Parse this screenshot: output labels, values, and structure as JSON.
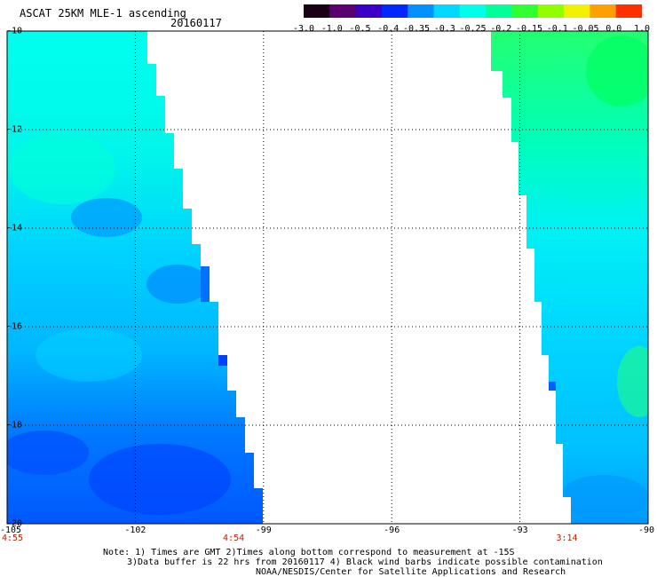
{
  "header": {
    "title": "ASCAT 25KM MLE-1 ascending",
    "date": "20160117"
  },
  "colorbar": {
    "labels": [
      "-3.0",
      "-1.0",
      "-0.5",
      "-0.4",
      "-0.35",
      "-0.3",
      "-0.25",
      "-0.2",
      "-0.15",
      "-0.1",
      "-0.05",
      "0.0",
      "1.0"
    ],
    "colors": [
      "#1a0016",
      "#5a0070",
      "#3a00c8",
      "#0028ff",
      "#0090ff",
      "#00d8ff",
      "#00ffe8",
      "#00ff98",
      "#30ff30",
      "#90ff00",
      "#f0f000",
      "#ffa000",
      "#ff3000"
    ]
  },
  "map": {
    "lat_labels": [
      "-10",
      "-12",
      "-14",
      "-16",
      "-18",
      "-20"
    ],
    "lon_labels": [
      "-105",
      "-102",
      "-99",
      "-96",
      "-93",
      "-90"
    ],
    "lon_range": [
      -105,
      -90
    ],
    "lat_range": [
      -10,
      -20
    ],
    "pass_times": [
      {
        "label": "4:55",
        "lon": -105
      },
      {
        "label": "4:54",
        "lon": -99.7
      },
      {
        "label": "3:14",
        "lon": -91.9
      }
    ]
  },
  "notes": {
    "line1": "Note: 1) Times are GMT 2)Times along bottom correspond to measurement at -15S",
    "line2": "3)Data buffer is 22 hrs from 20160117 4) Black wind barbs indicate possible contamination",
    "line3": "NOAA/NESDIS/Center for Satellite Applications and Research"
  }
}
